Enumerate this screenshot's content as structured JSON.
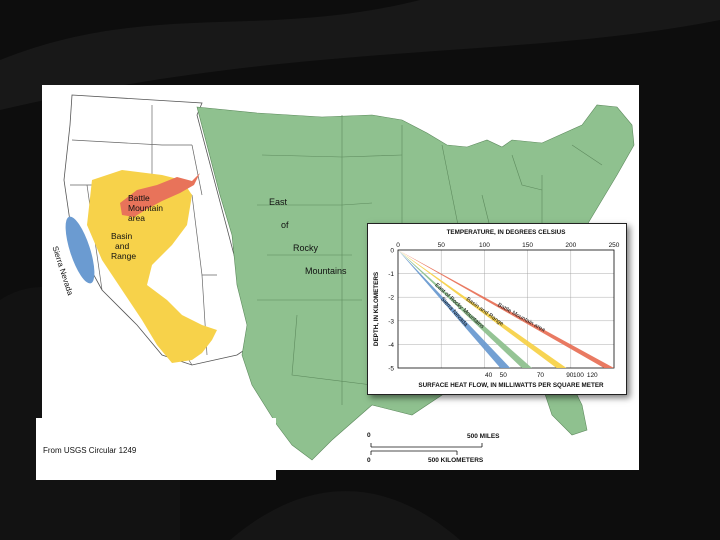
{
  "map": {
    "regions": [
      {
        "name_lines": [
          "Battle",
          "Mountain",
          "area"
        ],
        "color": "#e8735a"
      },
      {
        "name_lines": [
          "Basin",
          "and",
          "Range"
        ],
        "color": "#f7d24a"
      },
      {
        "name_lines": [
          "Sierra Nevada"
        ],
        "color": "#6b9bd1"
      },
      {
        "name_lines": [
          "East",
          "of",
          "Rocky",
          "Mountains"
        ],
        "color": "#8fc18f"
      }
    ],
    "scale": {
      "miles_zero": "0",
      "miles_label": "500 MILES",
      "km_zero": "0",
      "km_label": "500 KILOMETERS"
    }
  },
  "caption": "From USGS Circular 1249",
  "chart_data": {
    "type": "line",
    "title": "",
    "top_axis": {
      "label": "TEMPERATURE, IN DEGREES CELSIUS",
      "ticks": [
        0,
        50,
        100,
        150,
        200,
        250
      ],
      "range": [
        0,
        250
      ]
    },
    "bottom_axis": {
      "label": "SURFACE HEAT FLOW, IN MILLIWATTS PER SQUARE METER",
      "ticks": [
        40,
        50,
        70,
        90,
        100,
        120
      ]
    },
    "ylabel": "DEPTH, IN KILOMETERS",
    "yticks": [
      0,
      -1,
      -2,
      -3,
      -4,
      -5
    ],
    "ylim": [
      -5,
      0
    ],
    "series": [
      {
        "name": "Sierra Nevada",
        "heat_flow": 40,
        "temp_at_5km": 130,
        "color": "#6b9bd1"
      },
      {
        "name": "East of Rocky Mountains",
        "heat_flow": 50,
        "temp_at_5km": 155,
        "color": "#8fc18f"
      },
      {
        "name": "Basin and Range",
        "heat_flow": 90,
        "temp_at_5km": 195,
        "color": "#f7d24a"
      },
      {
        "name": "Battle Mountain area",
        "heat_flow": 120,
        "temp_at_5km": 250,
        "color": "#e8735a"
      }
    ]
  }
}
